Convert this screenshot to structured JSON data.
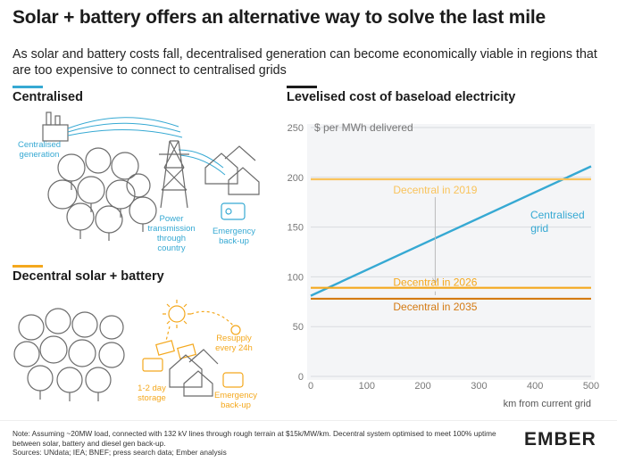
{
  "header": {
    "title": "Solar + battery offers an alternative way to solve the last mile",
    "subtitle": "As solar and battery costs fall, decentralised generation can become economically viable in regions that are too expensive to connect to centralised grids"
  },
  "left": {
    "centralised": {
      "heading": "Centralised",
      "labels": {
        "generation": "Centralised\ngeneration",
        "transmission": "Power\ntransmission\nthrough\ncountry",
        "backup": "Emergency\nback-up"
      }
    },
    "decentral": {
      "heading": "Decentral solar + battery",
      "labels": {
        "resupply": "Resupply\nevery 24h",
        "storage": "1-2 day\nstorage",
        "backup": "Emergency\nback-up"
      }
    }
  },
  "colors": {
    "teal": "#36a9d3",
    "orange": "#f4a81d",
    "orange_light": "#f9c35b",
    "orange_dark": "#ec8f1d",
    "dark_orange_line": "#d47a12",
    "grid": "#e6e6e6",
    "text": "#1b1b1b"
  },
  "chart_data": {
    "type": "line",
    "title": "Levelised cost of baseload electricity",
    "ylabel": "$ per MWh delivered",
    "xlabel": "km from current grid",
    "xlim": [
      0,
      500
    ],
    "ylim": [
      0,
      250
    ],
    "xticks": [
      0,
      100,
      200,
      300,
      400,
      500
    ],
    "yticks": [
      0,
      50,
      100,
      150,
      200,
      250
    ],
    "grid": "horizontal",
    "series": [
      {
        "name": "Centralised grid",
        "kind": "line",
        "x": [
          0,
          500
        ],
        "y": [
          81,
          211
        ],
        "color": "#36a9d3"
      },
      {
        "name": "Decentral in 2019",
        "kind": "hline",
        "y": 198,
        "color": "#f9c35b"
      },
      {
        "name": "Decentral in 2026",
        "kind": "hline",
        "y": 89,
        "color": "#f4a81d"
      },
      {
        "name": "Decentral in 2035",
        "kind": "hline",
        "y": 78,
        "color": "#d47a12"
      }
    ],
    "annotations": [
      {
        "text": "Centralised\ngrid",
        "color": "#36a9d3"
      },
      {
        "text": "Decentral in 2019",
        "color": "#f9c35b"
      },
      {
        "text": "Decentral in 2026",
        "color": "#f4a81d"
      },
      {
        "text": "Decentral in 2035",
        "color": "#d47a12"
      }
    ]
  },
  "footer": {
    "note": "Note: Assuming ~20MW load, connected with 132 kV lines through rough terrain at $15k/MW/km. Decentral system optimised to meet 100% uptime between solar, battery and diesel gen back-up.",
    "sources": "Sources: UNdata; IEA; BNEF; press search data; Ember analysis",
    "logo": "EMBER"
  }
}
